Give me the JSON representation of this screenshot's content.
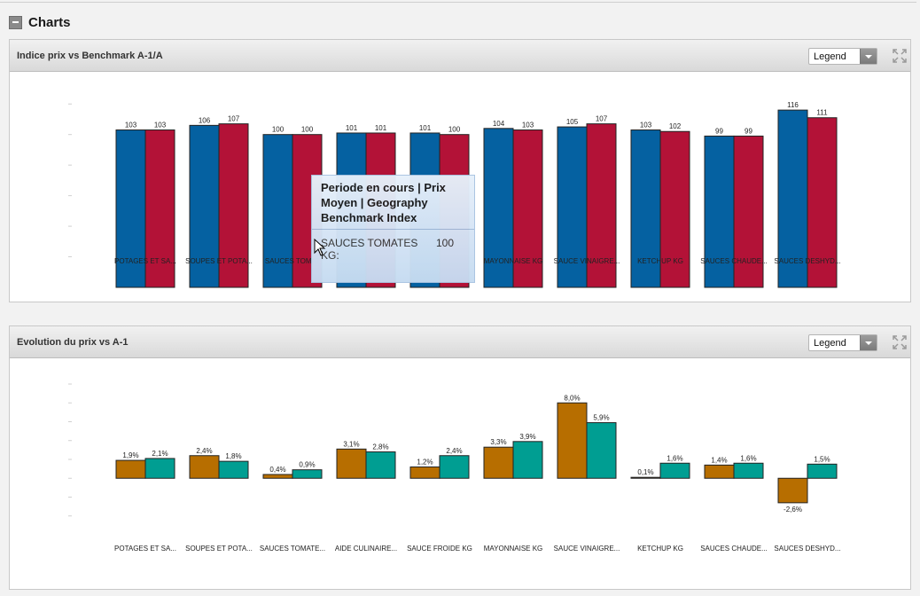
{
  "section": {
    "title": "Charts"
  },
  "charts": [
    {
      "title": "Indice prix vs Benchmark A-1/A",
      "legend_label": "Legend",
      "chart_data": {
        "type": "bar",
        "categories": [
          "POTAGES ET SA...",
          "SOUPES ET POTA...",
          "SAUCES TOMAT",
          "",
          "",
          "MAYONNAISE KG",
          "SAUCE VINAIGRE...",
          "KETCHUP KG",
          "SAUCES CHAUDE...",
          "SAUCES DESHYD..."
        ],
        "series": [
          {
            "values": [
              103,
              106,
              100,
              101,
              101,
              104,
              105,
              103,
              99,
              116
            ],
            "labels": [
              "103",
              "106",
              "100",
              "101",
              "101",
              "104",
              "105",
              "103",
              "99",
              "116"
            ],
            "color": "#0561a1"
          },
          {
            "values": [
              103,
              107,
              100,
              101,
              100,
              103,
              107,
              102,
              99,
              111
            ],
            "labels": [
              "103",
              "107",
              "100",
              "101",
              "100",
              "103",
              "107",
              "102",
              "99",
              "111"
            ],
            "color": "#b31237"
          }
        ],
        "ylim": [
          0,
          130
        ]
      }
    },
    {
      "title": "Evolution du prix vs A-1",
      "legend_label": "Legend",
      "chart_data": {
        "type": "bar",
        "categories": [
          "POTAGES ET SA...",
          "SOUPES ET POTA...",
          "SAUCES TOMATE...",
          "AIDE CULINAIRE...",
          "SAUCE FROIDE KG",
          "MAYONNAISE KG",
          "SAUCE VINAIGRE...",
          "KETCHUP KG",
          "SAUCES CHAUDE...",
          "SAUCES DESHYD..."
        ],
        "series": [
          {
            "values": [
              1.9,
              2.4,
              0.4,
              3.1,
              1.2,
              3.3,
              8.0,
              0.1,
              1.4,
              -2.6
            ],
            "labels": [
              "1,9%",
              "2,4%",
              "0,4%",
              "3,1%",
              "1,2%",
              "3,3%",
              "8,0%",
              "0,1%",
              "1,4%",
              "-2,6%"
            ],
            "color": "#b76e00"
          },
          {
            "values": [
              2.1,
              1.8,
              0.9,
              2.8,
              2.4,
              3.9,
              5.9,
              1.6,
              1.6,
              1.5
            ],
            "labels": [
              "2,1%",
              "1,8%",
              "0,9%",
              "2,8%",
              "2,4%",
              "3,9%",
              "5,9%",
              "1,6%",
              "1,6%",
              "1,5%"
            ],
            "color": "#009e92"
          }
        ],
        "ylim": [
          -6,
          10
        ]
      }
    }
  ],
  "tooltip": {
    "title": "Periode en cours | Prix Moyen | Geography Benchmark Index",
    "label": "SAUCES TOMATES KG:",
    "value": "100"
  }
}
